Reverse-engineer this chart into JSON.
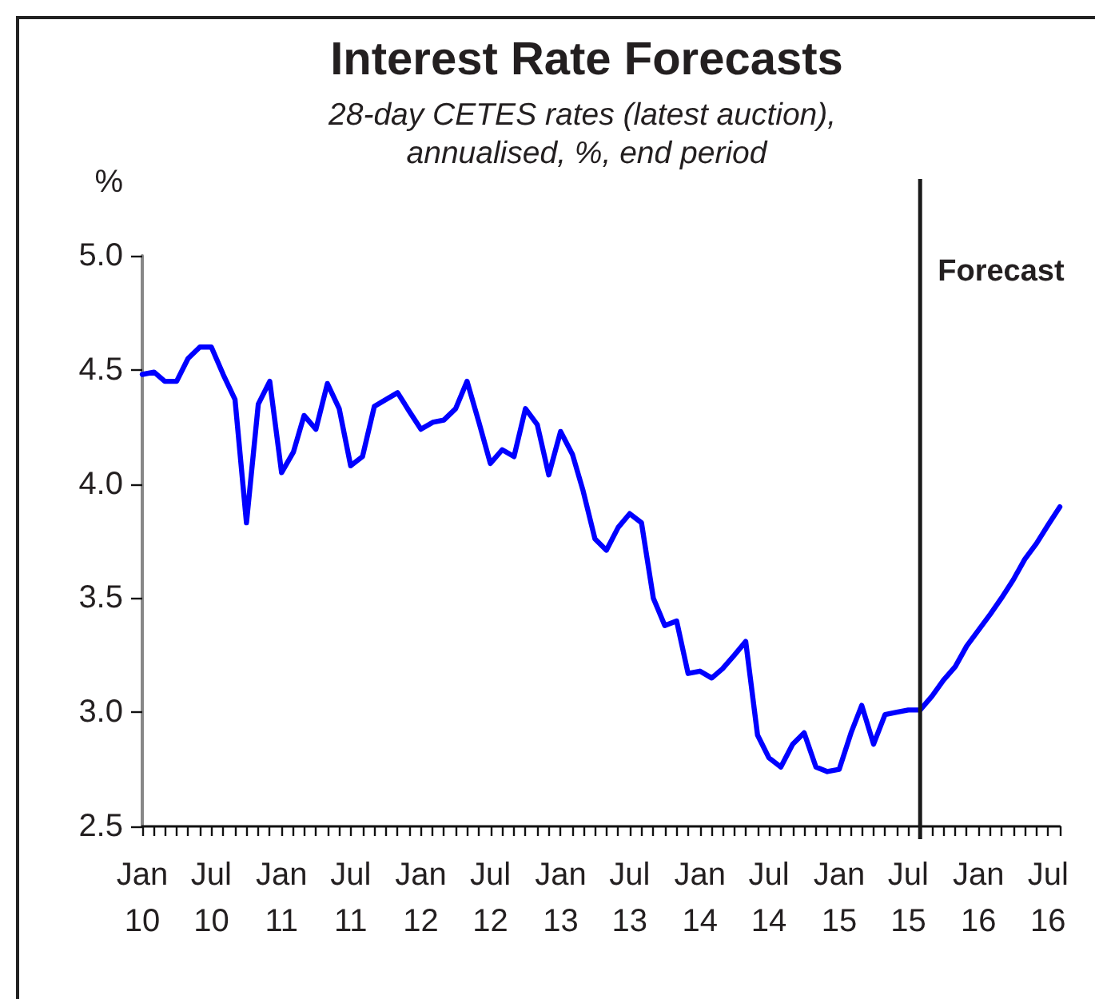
{
  "chart_data": {
    "type": "line",
    "title": "Interest Rate Forecasts",
    "subtitle": "28-day CETES rates (latest auction), annualised, %, end period",
    "ylabel": "%",
    "x": [
      "2010-01",
      "2010-02",
      "2010-03",
      "2010-04",
      "2010-05",
      "2010-06",
      "2010-07",
      "2010-08",
      "2010-09",
      "2010-10",
      "2010-11",
      "2010-12",
      "2011-01",
      "2011-02",
      "2011-03",
      "2011-04",
      "2011-05",
      "2011-06",
      "2011-07",
      "2011-08",
      "2011-09",
      "2011-10",
      "2011-11",
      "2011-12",
      "2012-01",
      "2012-02",
      "2012-03",
      "2012-04",
      "2012-05",
      "2012-06",
      "2012-07",
      "2012-08",
      "2012-09",
      "2012-10",
      "2012-11",
      "2012-12",
      "2013-01",
      "2013-02",
      "2013-03",
      "2013-04",
      "2013-05",
      "2013-06",
      "2013-07",
      "2013-08",
      "2013-09",
      "2013-10",
      "2013-11",
      "2013-12",
      "2014-01",
      "2014-02",
      "2014-03",
      "2014-04",
      "2014-05",
      "2014-06",
      "2014-07",
      "2014-08",
      "2014-09",
      "2014-10",
      "2014-11",
      "2014-12",
      "2015-01",
      "2015-02",
      "2015-03",
      "2015-04",
      "2015-05",
      "2015-06",
      "2015-07",
      "2015-08",
      "2015-09",
      "2015-10",
      "2015-11",
      "2015-12",
      "2016-01",
      "2016-02",
      "2016-03",
      "2016-04",
      "2016-05",
      "2016-06",
      "2016-07",
      "2016-08"
    ],
    "series": [
      {
        "color": "#0000ff",
        "values": [
          4.48,
          4.49,
          4.45,
          4.45,
          4.55,
          4.6,
          4.6,
          4.48,
          4.37,
          3.83,
          4.35,
          4.45,
          4.05,
          4.14,
          4.3,
          4.24,
          4.44,
          4.33,
          4.08,
          4.12,
          4.34,
          4.37,
          4.4,
          4.32,
          4.24,
          4.27,
          4.28,
          4.33,
          4.45,
          4.27,
          4.09,
          4.15,
          4.12,
          4.33,
          4.26,
          4.04,
          4.23,
          4.13,
          3.97,
          3.76,
          3.71,
          3.81,
          3.87,
          3.83,
          3.5,
          3.38,
          3.4,
          3.17,
          3.18,
          3.15,
          3.19,
          3.25,
          3.31,
          2.9,
          2.8,
          2.76,
          2.86,
          2.91,
          2.76,
          2.74,
          2.75,
          2.91,
          3.03,
          2.86,
          2.99,
          3.0,
          3.01,
          3.01,
          3.07,
          3.14,
          3.2,
          3.29,
          3.36,
          3.43,
          3.5,
          3.58,
          3.67,
          3.74,
          3.82,
          3.9
        ]
      }
    ],
    "xlim": [
      "2010-01",
      "2016-08"
    ],
    "xticks": [
      {
        "value": "2010-01",
        "label": "Jan 10"
      },
      {
        "value": "2010-02",
        "label": null
      },
      {
        "value": "2010-03",
        "label": null
      },
      {
        "value": "2010-04",
        "label": null
      },
      {
        "value": "2010-05",
        "label": null
      },
      {
        "value": "2010-06",
        "label": null
      },
      {
        "value": "2010-07",
        "label": "Jul 10"
      },
      {
        "value": "2010-08",
        "label": null
      },
      {
        "value": "2010-09",
        "label": null
      },
      {
        "value": "2010-10",
        "label": null
      },
      {
        "value": "2010-11",
        "label": null
      },
      {
        "value": "2010-12",
        "label": null
      },
      {
        "value": "2011-01",
        "label": "Jan 11"
      },
      {
        "value": "2011-02",
        "label": null
      },
      {
        "value": "2011-03",
        "label": null
      },
      {
        "value": "2011-04",
        "label": null
      },
      {
        "value": "2011-05",
        "label": null
      },
      {
        "value": "2011-06",
        "label": null
      },
      {
        "value": "2011-07",
        "label": "Jul 11"
      },
      {
        "value": "2011-08",
        "label": null
      },
      {
        "value": "2011-09",
        "label": null
      },
      {
        "value": "2011-10",
        "label": null
      },
      {
        "value": "2011-11",
        "label": null
      },
      {
        "value": "2011-12",
        "label": null
      },
      {
        "value": "2012-01",
        "label": "Jan 12"
      },
      {
        "value": "2012-02",
        "label": null
      },
      {
        "value": "2012-03",
        "label": null
      },
      {
        "value": "2012-04",
        "label": null
      },
      {
        "value": "2012-05",
        "label": null
      },
      {
        "value": "2012-06",
        "label": null
      },
      {
        "value": "2012-07",
        "label": "Jul 12"
      },
      {
        "value": "2012-08",
        "label": null
      },
      {
        "value": "2012-09",
        "label": null
      },
      {
        "value": "2012-10",
        "label": null
      },
      {
        "value": "2012-11",
        "label": null
      },
      {
        "value": "2012-12",
        "label": null
      },
      {
        "value": "2013-01",
        "label": "Jan 13"
      },
      {
        "value": "2013-02",
        "label": null
      },
      {
        "value": "2013-03",
        "label": null
      },
      {
        "value": "2013-04",
        "label": null
      },
      {
        "value": "2013-05",
        "label": null
      },
      {
        "value": "2013-06",
        "label": null
      },
      {
        "value": "2013-07",
        "label": "Jul 13"
      },
      {
        "value": "2013-08",
        "label": null
      },
      {
        "value": "2013-09",
        "label": null
      },
      {
        "value": "2013-10",
        "label": null
      },
      {
        "value": "2013-11",
        "label": null
      },
      {
        "value": "2013-12",
        "label": null
      },
      {
        "value": "2014-01",
        "label": "Jan 14"
      },
      {
        "value": "2014-02",
        "label": null
      },
      {
        "value": "2014-03",
        "label": null
      },
      {
        "value": "2014-04",
        "label": null
      },
      {
        "value": "2014-05",
        "label": null
      },
      {
        "value": "2014-06",
        "label": null
      },
      {
        "value": "2014-07",
        "label": "Jul 14"
      },
      {
        "value": "2014-08",
        "label": null
      },
      {
        "value": "2014-09",
        "label": null
      },
      {
        "value": "2014-10",
        "label": null
      },
      {
        "value": "2014-11",
        "label": null
      },
      {
        "value": "2014-12",
        "label": null
      },
      {
        "value": "2015-01",
        "label": "Jan 15"
      },
      {
        "value": "2015-02",
        "label": null
      },
      {
        "value": "2015-03",
        "label": null
      },
      {
        "value": "2015-04",
        "label": null
      },
      {
        "value": "2015-05",
        "label": null
      },
      {
        "value": "2015-06",
        "label": null
      },
      {
        "value": "2015-07",
        "label": "Jul 15"
      },
      {
        "value": "2015-08",
        "label": null
      },
      {
        "value": "2015-09",
        "label": null
      },
      {
        "value": "2015-10",
        "label": null
      },
      {
        "value": "2015-11",
        "label": null
      },
      {
        "value": "2015-12",
        "label": null
      },
      {
        "value": "2016-01",
        "label": "Jan 16"
      },
      {
        "value": "2016-02",
        "label": null
      },
      {
        "value": "2016-03",
        "label": null
      },
      {
        "value": "2016-04",
        "label": null
      },
      {
        "value": "2016-05",
        "label": null
      },
      {
        "value": "2016-06",
        "label": null
      },
      {
        "value": "2016-07",
        "label": "Jul 16"
      },
      {
        "value": "2016-08",
        "label": null
      }
    ],
    "ylim": [
      2.5,
      5.0
    ],
    "yticks": [
      2.5,
      {
        "value": 3,
        "label": "3.0"
      },
      3.5,
      {
        "value": 4,
        "label": "4.0"
      },
      4.5,
      {
        "value": 5,
        "label": "5.0"
      }
    ],
    "ref_lines": [
      {
        "axis": "x",
        "value": "2015-08",
        "label": "Forecast",
        "color": "#1a1a1a"
      }
    ],
    "marker": "none",
    "line_style": "solid"
  }
}
